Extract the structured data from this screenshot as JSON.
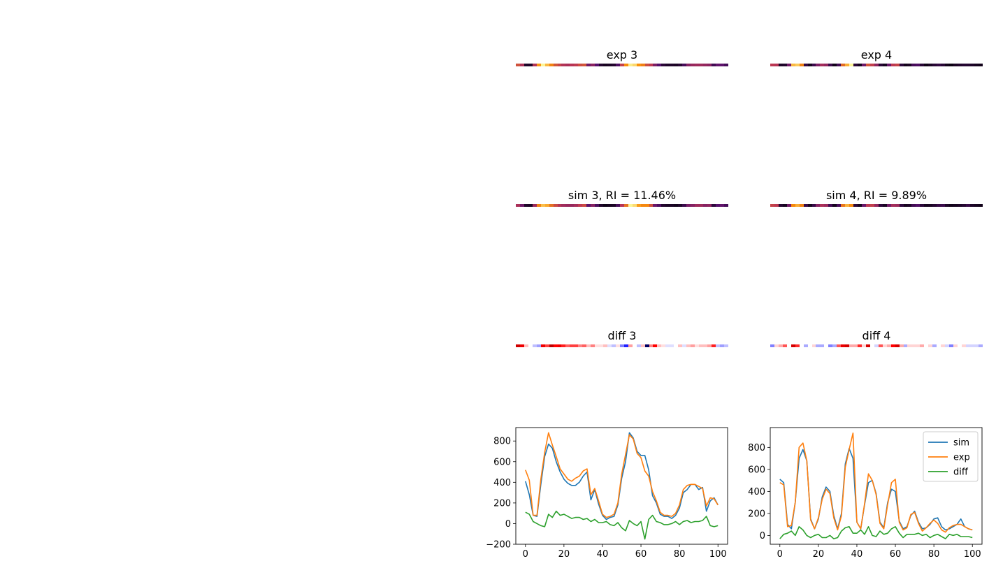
{
  "panels": {
    "exp3": {
      "title": "exp 3"
    },
    "exp4": {
      "title": "exp 4"
    },
    "sim3": {
      "title": "sim 3, RI = 11.46%"
    },
    "sim4": {
      "title": "sim 4, RI = 9.89%"
    },
    "diff3": {
      "title": "diff 3"
    },
    "diff4": {
      "title": "diff 4"
    }
  },
  "colors": {
    "sim": "#1f77b4",
    "exp": "#ff7f0e",
    "diff": "#2ca02c"
  },
  "chart_data": [
    {
      "type": "line",
      "title": "",
      "xlim": [
        -5,
        105
      ],
      "ylim": [
        -200,
        930
      ],
      "xticks": [
        0,
        20,
        40,
        60,
        80,
        100
      ],
      "yticks": [
        -200,
        0,
        200,
        400,
        600,
        800
      ],
      "series": [
        {
          "name": "sim",
          "x": [
            0,
            2,
            4,
            6,
            8,
            10,
            12,
            14,
            16,
            18,
            20,
            22,
            24,
            26,
            28,
            30,
            32,
            34,
            36,
            38,
            40,
            42,
            44,
            46,
            48,
            50,
            52,
            54,
            56,
            58,
            60,
            62,
            64,
            66,
            68,
            70,
            72,
            74,
            76,
            78,
            80,
            82,
            84,
            86,
            88,
            90,
            92,
            94,
            96,
            98,
            100
          ],
          "values": [
            410,
            280,
            80,
            70,
            380,
            650,
            770,
            730,
            600,
            500,
            430,
            390,
            370,
            370,
            400,
            460,
            500,
            230,
            330,
            190,
            80,
            40,
            60,
            70,
            180,
            440,
            600,
            880,
            830,
            700,
            660,
            660,
            520,
            270,
            200,
            90,
            70,
            70,
            50,
            80,
            150,
            300,
            330,
            380,
            380,
            330,
            350,
            120,
            220,
            250,
            180
          ]
        },
        {
          "name": "exp",
          "x": [
            0,
            2,
            4,
            6,
            8,
            10,
            12,
            14,
            16,
            18,
            20,
            22,
            24,
            26,
            28,
            30,
            32,
            34,
            36,
            38,
            40,
            42,
            44,
            46,
            48,
            50,
            52,
            54,
            56,
            58,
            60,
            62,
            64,
            66,
            68,
            70,
            72,
            74,
            76,
            78,
            80,
            82,
            84,
            86,
            88,
            90,
            92,
            94,
            96,
            98,
            100
          ],
          "values": [
            520,
            420,
            80,
            80,
            430,
            690,
            880,
            760,
            650,
            530,
            480,
            430,
            410,
            440,
            460,
            510,
            530,
            280,
            340,
            220,
            90,
            60,
            70,
            90,
            200,
            480,
            670,
            860,
            820,
            680,
            640,
            510,
            460,
            310,
            220,
            110,
            80,
            80,
            70,
            100,
            180,
            330,
            370,
            380,
            380,
            360,
            340,
            170,
            250,
            240,
            180
          ]
        },
        {
          "name": "diff",
          "x": [
            0,
            2,
            4,
            6,
            8,
            10,
            12,
            14,
            16,
            18,
            20,
            22,
            24,
            26,
            28,
            30,
            32,
            34,
            36,
            38,
            40,
            42,
            44,
            46,
            48,
            50,
            52,
            54,
            56,
            58,
            60,
            62,
            64,
            66,
            68,
            70,
            72,
            74,
            76,
            78,
            80,
            82,
            84,
            86,
            88,
            90,
            92,
            94,
            96,
            98,
            100
          ],
          "values": [
            110,
            90,
            20,
            0,
            -20,
            -30,
            90,
            60,
            120,
            80,
            90,
            70,
            50,
            60,
            60,
            40,
            50,
            20,
            40,
            10,
            10,
            20,
            -10,
            -20,
            10,
            -40,
            -70,
            30,
            0,
            -20,
            20,
            -150,
            40,
            80,
            20,
            10,
            -10,
            -10,
            0,
            20,
            -10,
            20,
            30,
            10,
            20,
            20,
            30,
            70,
            -20,
            -30,
            -20
          ]
        }
      ]
    },
    {
      "type": "line",
      "title": "",
      "xlim": [
        -5,
        105
      ],
      "ylim": [
        -80,
        980
      ],
      "xticks": [
        0,
        20,
        40,
        60,
        80,
        100
      ],
      "yticks": [
        0,
        200,
        400,
        600,
        800
      ],
      "legend": {
        "position": "top-right",
        "entries": [
          "sim",
          "exp",
          "diff"
        ]
      },
      "series": [
        {
          "name": "sim",
          "x": [
            0,
            2,
            4,
            6,
            8,
            10,
            12,
            14,
            16,
            18,
            20,
            22,
            24,
            26,
            28,
            30,
            32,
            34,
            36,
            38,
            40,
            42,
            44,
            46,
            48,
            50,
            52,
            54,
            56,
            58,
            60,
            62,
            64,
            66,
            68,
            70,
            72,
            74,
            76,
            78,
            80,
            82,
            84,
            86,
            88,
            90,
            92,
            94,
            96,
            98,
            100
          ],
          "values": [
            510,
            480,
            100,
            60,
            300,
            700,
            780,
            680,
            150,
            60,
            150,
            350,
            440,
            400,
            180,
            60,
            200,
            650,
            790,
            700,
            120,
            60,
            280,
            480,
            500,
            380,
            120,
            70,
            300,
            420,
            400,
            130,
            60,
            80,
            180,
            220,
            120,
            60,
            70,
            100,
            150,
            160,
            80,
            50,
            60,
            80,
            100,
            150,
            80,
            60,
            50
          ]
        },
        {
          "name": "exp",
          "x": [
            0,
            2,
            4,
            6,
            8,
            10,
            12,
            14,
            16,
            18,
            20,
            22,
            24,
            26,
            28,
            30,
            32,
            34,
            36,
            38,
            40,
            42,
            44,
            46,
            48,
            50,
            52,
            54,
            56,
            58,
            60,
            62,
            64,
            66,
            68,
            70,
            72,
            74,
            76,
            78,
            80,
            82,
            84,
            86,
            88,
            90,
            92,
            94,
            96,
            98,
            100
          ],
          "values": [
            480,
            460,
            80,
            90,
            300,
            800,
            840,
            680,
            140,
            60,
            160,
            330,
            420,
            380,
            160,
            50,
            180,
            620,
            780,
            930,
            120,
            60,
            290,
            560,
            500,
            370,
            110,
            60,
            280,
            480,
            510,
            120,
            50,
            70,
            190,
            210,
            110,
            40,
            70,
            110,
            140,
            110,
            50,
            30,
            70,
            90,
            100,
            100,
            80,
            60,
            50
          ]
        },
        {
          "name": "diff",
          "x": [
            0,
            2,
            4,
            6,
            8,
            10,
            12,
            14,
            16,
            18,
            20,
            22,
            24,
            26,
            28,
            30,
            32,
            34,
            36,
            38,
            40,
            42,
            44,
            46,
            48,
            50,
            52,
            54,
            56,
            58,
            60,
            62,
            64,
            66,
            68,
            70,
            72,
            74,
            76,
            78,
            80,
            82,
            84,
            86,
            88,
            90,
            92,
            94,
            96,
            98,
            100
          ],
          "values": [
            -30,
            10,
            20,
            40,
            0,
            80,
            50,
            0,
            -20,
            0,
            10,
            -20,
            -20,
            0,
            -30,
            -20,
            40,
            70,
            80,
            20,
            20,
            50,
            10,
            80,
            0,
            -10,
            40,
            10,
            20,
            60,
            80,
            20,
            -20,
            10,
            10,
            10,
            20,
            0,
            10,
            -20,
            0,
            10,
            -10,
            -30,
            10,
            0,
            10,
            -10,
            -10,
            -10,
            -20
          ]
        }
      ]
    }
  ]
}
